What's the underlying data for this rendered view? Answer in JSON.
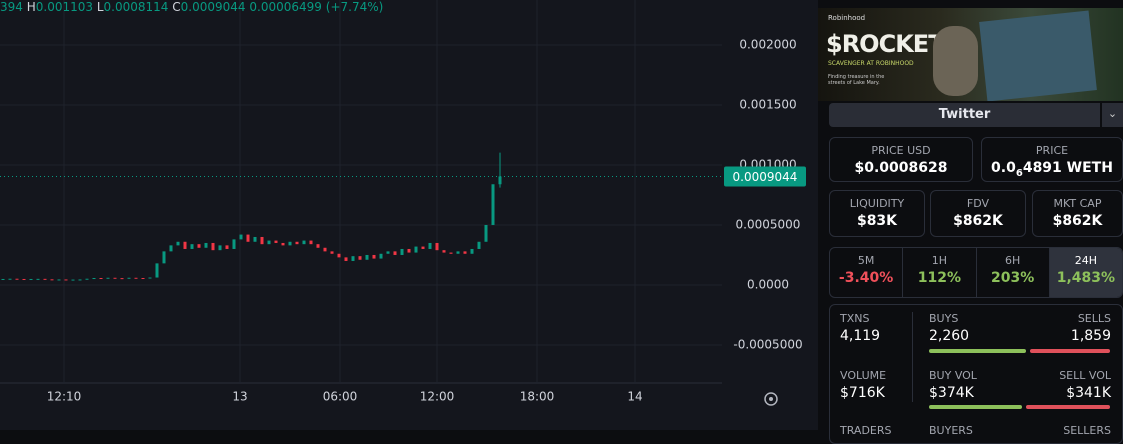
{
  "chart_data": {
    "type": "candlestick",
    "ohlc": {
      "open_tail": "394",
      "high_label": "H",
      "high": 0.001103,
      "low_label": "L",
      "low": 0.0008114,
      "close_label": "C",
      "close": 0.0009044,
      "change": 6.499e-05,
      "change_pct": "(+7.74%)"
    },
    "values": [
      5e-05,
      5.2e-05,
      5e-05,
      4.8e-05,
      5e-05,
      5.1e-05,
      4.7e-05,
      4.5e-05,
      4.6e-05,
      4.4e-05,
      4.5e-05,
      4.6e-05,
      5.2e-05,
      5.8e-05,
      5.6e-05,
      6e-05,
      5.7e-05,
      5.5e-05,
      6e-05,
      5.8e-05,
      5.6e-05,
      6.2e-05,
      0.00018,
      0.00028,
      0.00033,
      0.00036,
      0.0003,
      0.00034,
      0.00031,
      0.00035,
      0.00029,
      0.00033,
      0.0003,
      0.00038,
      0.00042,
      0.00036,
      0.0004,
      0.00034,
      0.00037,
      0.00035,
      0.00033,
      0.00036,
      0.00034,
      0.00037,
      0.00034,
      0.00031,
      0.00028,
      0.00026,
      0.00023,
      0.0002,
      0.00024,
      0.00021,
      0.00025,
      0.00022,
      0.00026,
      0.00028,
      0.00025,
      0.0003,
      0.00027,
      0.00032,
      0.0003,
      0.00035,
      0.00029,
      0.00027,
      0.00026,
      0.00028,
      0.00026,
      0.0003,
      0.00036,
      0.0005,
      0.0008394,
      0.0009044
    ],
    "up_color": "#089981",
    "down_color": "#f23645",
    "ylim": [
      -0.000817,
      0.002375
    ],
    "yticks": [
      {
        "value": 0.002,
        "label": "0.002000"
      },
      {
        "value": 0.0015,
        "label": "0.001500"
      },
      {
        "value": 0.001,
        "label": "0.001000"
      },
      {
        "value": 0.0005,
        "label": "0.0005000"
      },
      {
        "value": 0,
        "label": "0.0000"
      },
      {
        "value": -0.0005,
        "label": "-0.0005000"
      }
    ],
    "last_price": 0.0009044,
    "x_labels": [
      "12:10",
      "13",
      "06:00",
      "12:00",
      "18:00",
      "14"
    ],
    "grid": true
  },
  "panel": {
    "banner": {
      "brand": "Robinhood",
      "title": "$ROCKET",
      "subtitle": "SCAVENGER AT ROBINHOOD",
      "tagline": "Finding treasure in the streets of Lake Mary."
    },
    "twitter": "Twitter",
    "price_usd": {
      "label": "PRICE USD",
      "value": "$0.0008628"
    },
    "price": {
      "label": "PRICE",
      "lead": "0.0",
      "zeros": "6",
      "tail": "4891 WETH"
    },
    "liquidity": {
      "label": "LIQUIDITY",
      "value": "$83K"
    },
    "fdv": {
      "label": "FDV",
      "value": "$862K"
    },
    "mkt_cap": {
      "label": "MKT CAP",
      "value": "$862K"
    },
    "timeframes": [
      {
        "label": "5M",
        "value": "-3.40%"
      },
      {
        "label": "1H",
        "value": "112%"
      },
      {
        "label": "6H",
        "value": "203%"
      },
      {
        "label": "24H",
        "value": "1,483%"
      }
    ],
    "txns": {
      "label": "TXNS",
      "value": "4,119"
    },
    "buys": {
      "label": "BUYS",
      "value": {
        "value": 2260,
        "label": "2,260"
      }
    },
    "sells": {
      "label": "SELLS",
      "value": {
        "value": 1859,
        "label": "1,859"
      }
    },
    "volume": {
      "label": "VOLUME",
      "value": "$716K"
    },
    "buy_vol": {
      "label": "BUY VOL",
      "value": {
        "value": 374000,
        "label": "$374K"
      }
    },
    "sell_vol": {
      "label": "SELL VOL",
      "value": {
        "value": 341000,
        "label": "$341K"
      }
    },
    "footer_labels": [
      "TRADERS",
      "BUYERS",
      "SELLERS"
    ]
  }
}
